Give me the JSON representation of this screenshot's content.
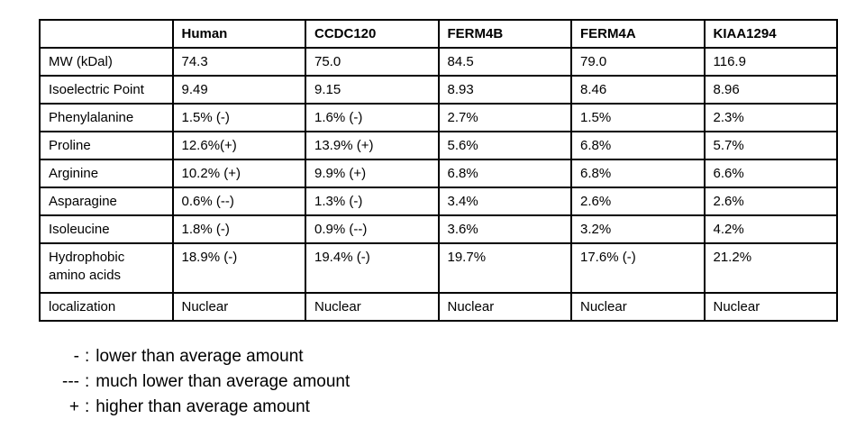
{
  "chart_data": {
    "type": "table",
    "columns": [
      "",
      "Human",
      "CCDC120",
      "FERM4B",
      "FERM4A",
      "KIAA1294"
    ],
    "rows": [
      {
        "label": "MW (kDal)",
        "values": [
          "74.3",
          "75.0",
          "84.5",
          "79.0",
          "116.9"
        ]
      },
      {
        "label": "Isoelectric Point",
        "values": [
          "9.49",
          "9.15",
          "8.93",
          "8.46",
          "8.96"
        ]
      },
      {
        "label": "Phenylalanine",
        "values": [
          "1.5% (-)",
          "1.6% (-)",
          "2.7%",
          "1.5%",
          "2.3%"
        ]
      },
      {
        "label": "Proline",
        "values": [
          "12.6%(+)",
          "13.9% (+)",
          "5.6%",
          "6.8%",
          "5.7%"
        ]
      },
      {
        "label": "Arginine",
        "values": [
          "10.2% (+)",
          "9.9% (+)",
          "6.8%",
          "6.8%",
          "6.6%"
        ]
      },
      {
        "label": "Asparagine",
        "values": [
          "0.6% (--)",
          "1.3% (-)",
          "3.4%",
          "2.6%",
          "2.6%"
        ]
      },
      {
        "label": "Isoleucine",
        "values": [
          "1.8% (-)",
          "0.9% (--)",
          "3.6%",
          "3.2%",
          "4.2%"
        ]
      },
      {
        "label": "Hydrophobic\namino acids",
        "values": [
          "18.9% (-)",
          "19.4% (-)",
          "19.7%",
          "17.6% (-)",
          "21.2%"
        ]
      },
      {
        "label": "localization",
        "values": [
          "Nuclear",
          "Nuclear",
          "Nuclear",
          "Nuclear",
          "Nuclear"
        ]
      }
    ],
    "legend": [
      {
        "symbol": "-",
        "description": "lower than average amount"
      },
      {
        "symbol": "---",
        "description": "much lower than average amount"
      },
      {
        "symbol": "+",
        "description": "higher than average amount"
      }
    ],
    "legend_separator": ":"
  },
  "colors": {
    "background": "#ffffff",
    "border": "#000000",
    "text": "#000000"
  }
}
